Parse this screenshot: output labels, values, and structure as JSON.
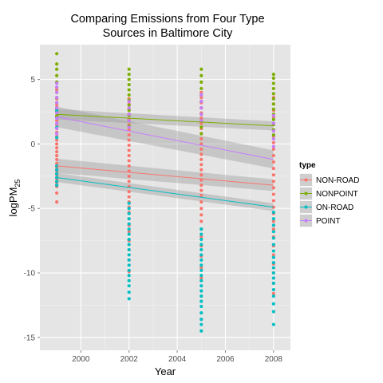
{
  "chart_data": {
    "type": "scatter",
    "title_line1": "Comparing Emissions from Four Type",
    "title_line2": "Sources in Baltimore City",
    "xlabel": "Year",
    "ylabel_main": "logPM",
    "ylabel_sub": "25",
    "xlim": [
      1998.3,
      2008.7
    ],
    "ylim": [
      -16,
      7.7
    ],
    "x_ticks": [
      2000,
      2002,
      2004,
      2006,
      2008
    ],
    "y_ticks": [
      -15,
      -10,
      -5,
      0,
      5
    ],
    "grid": true,
    "background": "#e5e5e5",
    "legend": {
      "title": "type",
      "position": "right"
    },
    "series": [
      {
        "name": "NON-ROAD",
        "color": "#f8766d",
        "fit": {
          "x": [
            1999,
            2008
          ],
          "y": [
            -1.7,
            -3.2
          ],
          "band": [
            0.55,
            0.45
          ]
        },
        "points": {
          "1999": [
            -4.5,
            -3.8,
            -3.3,
            -3.0,
            -2.7,
            -2.4,
            -2.1,
            -1.8,
            -1.5,
            -1.2,
            -0.9,
            -0.6,
            -0.3,
            0.0,
            0.3,
            0.6,
            0.9,
            1.2,
            1.5,
            1.8,
            2.1,
            2.4,
            2.7,
            3.0,
            3.5,
            4.2
          ],
          "2002": [
            -9.9,
            -9.0,
            -8.2,
            -7.5,
            -6.8,
            -6.3,
            -5.8,
            -5.3,
            -4.9,
            -4.5,
            -4.1,
            -3.7,
            -3.3,
            -2.9,
            -2.5,
            -2.1,
            -1.7,
            -1.3,
            -0.9,
            -0.5,
            -0.1,
            0.3,
            0.7,
            1.1,
            1.5,
            1.9,
            2.3,
            2.7,
            3.1,
            3.5
          ],
          "2005": [
            -10.4,
            -9.6,
            -8.7,
            -7.9,
            -7.2,
            -6.6,
            -6.0,
            -5.5,
            -5.0,
            -4.5,
            -4.0,
            -3.6,
            -3.2,
            -2.8,
            -2.4,
            -2.0,
            -1.6,
            -1.2,
            -0.8,
            -0.4,
            0.0,
            0.4,
            0.8,
            1.2,
            1.6,
            2.0,
            2.4,
            2.8,
            3.2,
            3.6,
            4.0
          ],
          "2008": [
            -11.6,
            -10.8,
            -10.0,
            -9.3,
            -8.6,
            -7.9,
            -7.2,
            -6.6,
            -6.0,
            -5.4,
            -4.9,
            -4.4,
            -3.9,
            -3.4,
            -2.9,
            -2.4,
            -1.9,
            -1.4,
            -0.9,
            -0.4,
            0.1,
            0.6,
            1.1,
            1.6,
            2.1,
            2.6,
            3.1,
            3.6
          ]
        }
      },
      {
        "name": "NONPOINT",
        "color": "#7cae00",
        "fit": {
          "x": [
            1999,
            2008
          ],
          "y": [
            2.3,
            1.4
          ],
          "band": [
            0.4,
            0.35
          ]
        },
        "points": {
          "1999": [
            7.0,
            6.2,
            5.8,
            5.3,
            4.8,
            4.4,
            4.0,
            3.6,
            3.2,
            2.8,
            2.5,
            2.2
          ],
          "2002": [
            5.8,
            5.4,
            5.0,
            4.6,
            4.2,
            3.8,
            3.4,
            3.0,
            2.6,
            2.2,
            1.8,
            1.4
          ],
          "2005": [
            5.8,
            5.3,
            4.8,
            4.3,
            3.8,
            3.3,
            2.8,
            2.3,
            1.8,
            1.3,
            0.8
          ],
          "2008": [
            5.4,
            5.1,
            4.7,
            4.3,
            3.9,
            3.5,
            3.1,
            2.7,
            2.3,
            1.9,
            1.5,
            1.1,
            0.7
          ]
        }
      },
      {
        "name": "ON-ROAD",
        "color": "#00bfc4",
        "fit": {
          "x": [
            1999,
            2008
          ],
          "y": [
            -2.6,
            -4.9
          ],
          "band": [
            0.35,
            0.3
          ]
        },
        "points": {
          "1999": [
            -3.2,
            -2.9,
            -2.6,
            -2.3,
            -2.0,
            -1.7,
            0.5,
            1.3,
            2.0,
            2.6
          ],
          "2002": [
            -12.0,
            -11.5,
            -11.0,
            -10.6,
            -10.2,
            -9.8,
            -9.4,
            -9.0,
            -8.6,
            -8.2,
            -7.8,
            -7.4,
            -7.0,
            -6.6,
            -6.2,
            -5.8,
            -5.4,
            -5.0,
            -4.6
          ],
          "2005": [
            -14.5,
            -14.0,
            -13.6,
            -13.1,
            -12.6,
            -12.2,
            -11.8,
            -11.4,
            -11.0,
            -10.6,
            -10.2,
            -9.8,
            -9.4,
            -9.0,
            -8.6,
            -8.2,
            -7.8,
            -7.4,
            -7.0,
            -6.6
          ],
          "2008": [
            -14.0,
            -13.0,
            -12.4,
            -11.8,
            -11.3,
            -10.8,
            -10.4,
            -10.0,
            -9.6,
            -9.2,
            -8.8,
            -8.3,
            -7.8,
            -7.3,
            -6.8,
            -6.3,
            -5.8,
            -5.3
          ]
        }
      },
      {
        "name": "POINT",
        "color": "#c77cff",
        "fit": {
          "x": [
            1999,
            2008
          ],
          "y": [
            2.1,
            -1.2
          ],
          "band": [
            0.8,
            0.7
          ]
        },
        "points": {
          "1999": [
            4.7,
            4.4,
            4.0,
            3.6,
            3.2,
            2.8,
            2.4,
            2.0,
            1.6,
            1.2,
            0.8
          ],
          "2002": [
            3.3,
            2.8,
            2.3,
            1.8,
            1.3
          ],
          "2005": [
            3.8,
            3.3,
            2.8,
            2.3,
            1.8
          ],
          "2008": [
            2.2,
            1.6,
            1.0,
            0.4,
            -0.2
          ]
        }
      }
    ]
  }
}
